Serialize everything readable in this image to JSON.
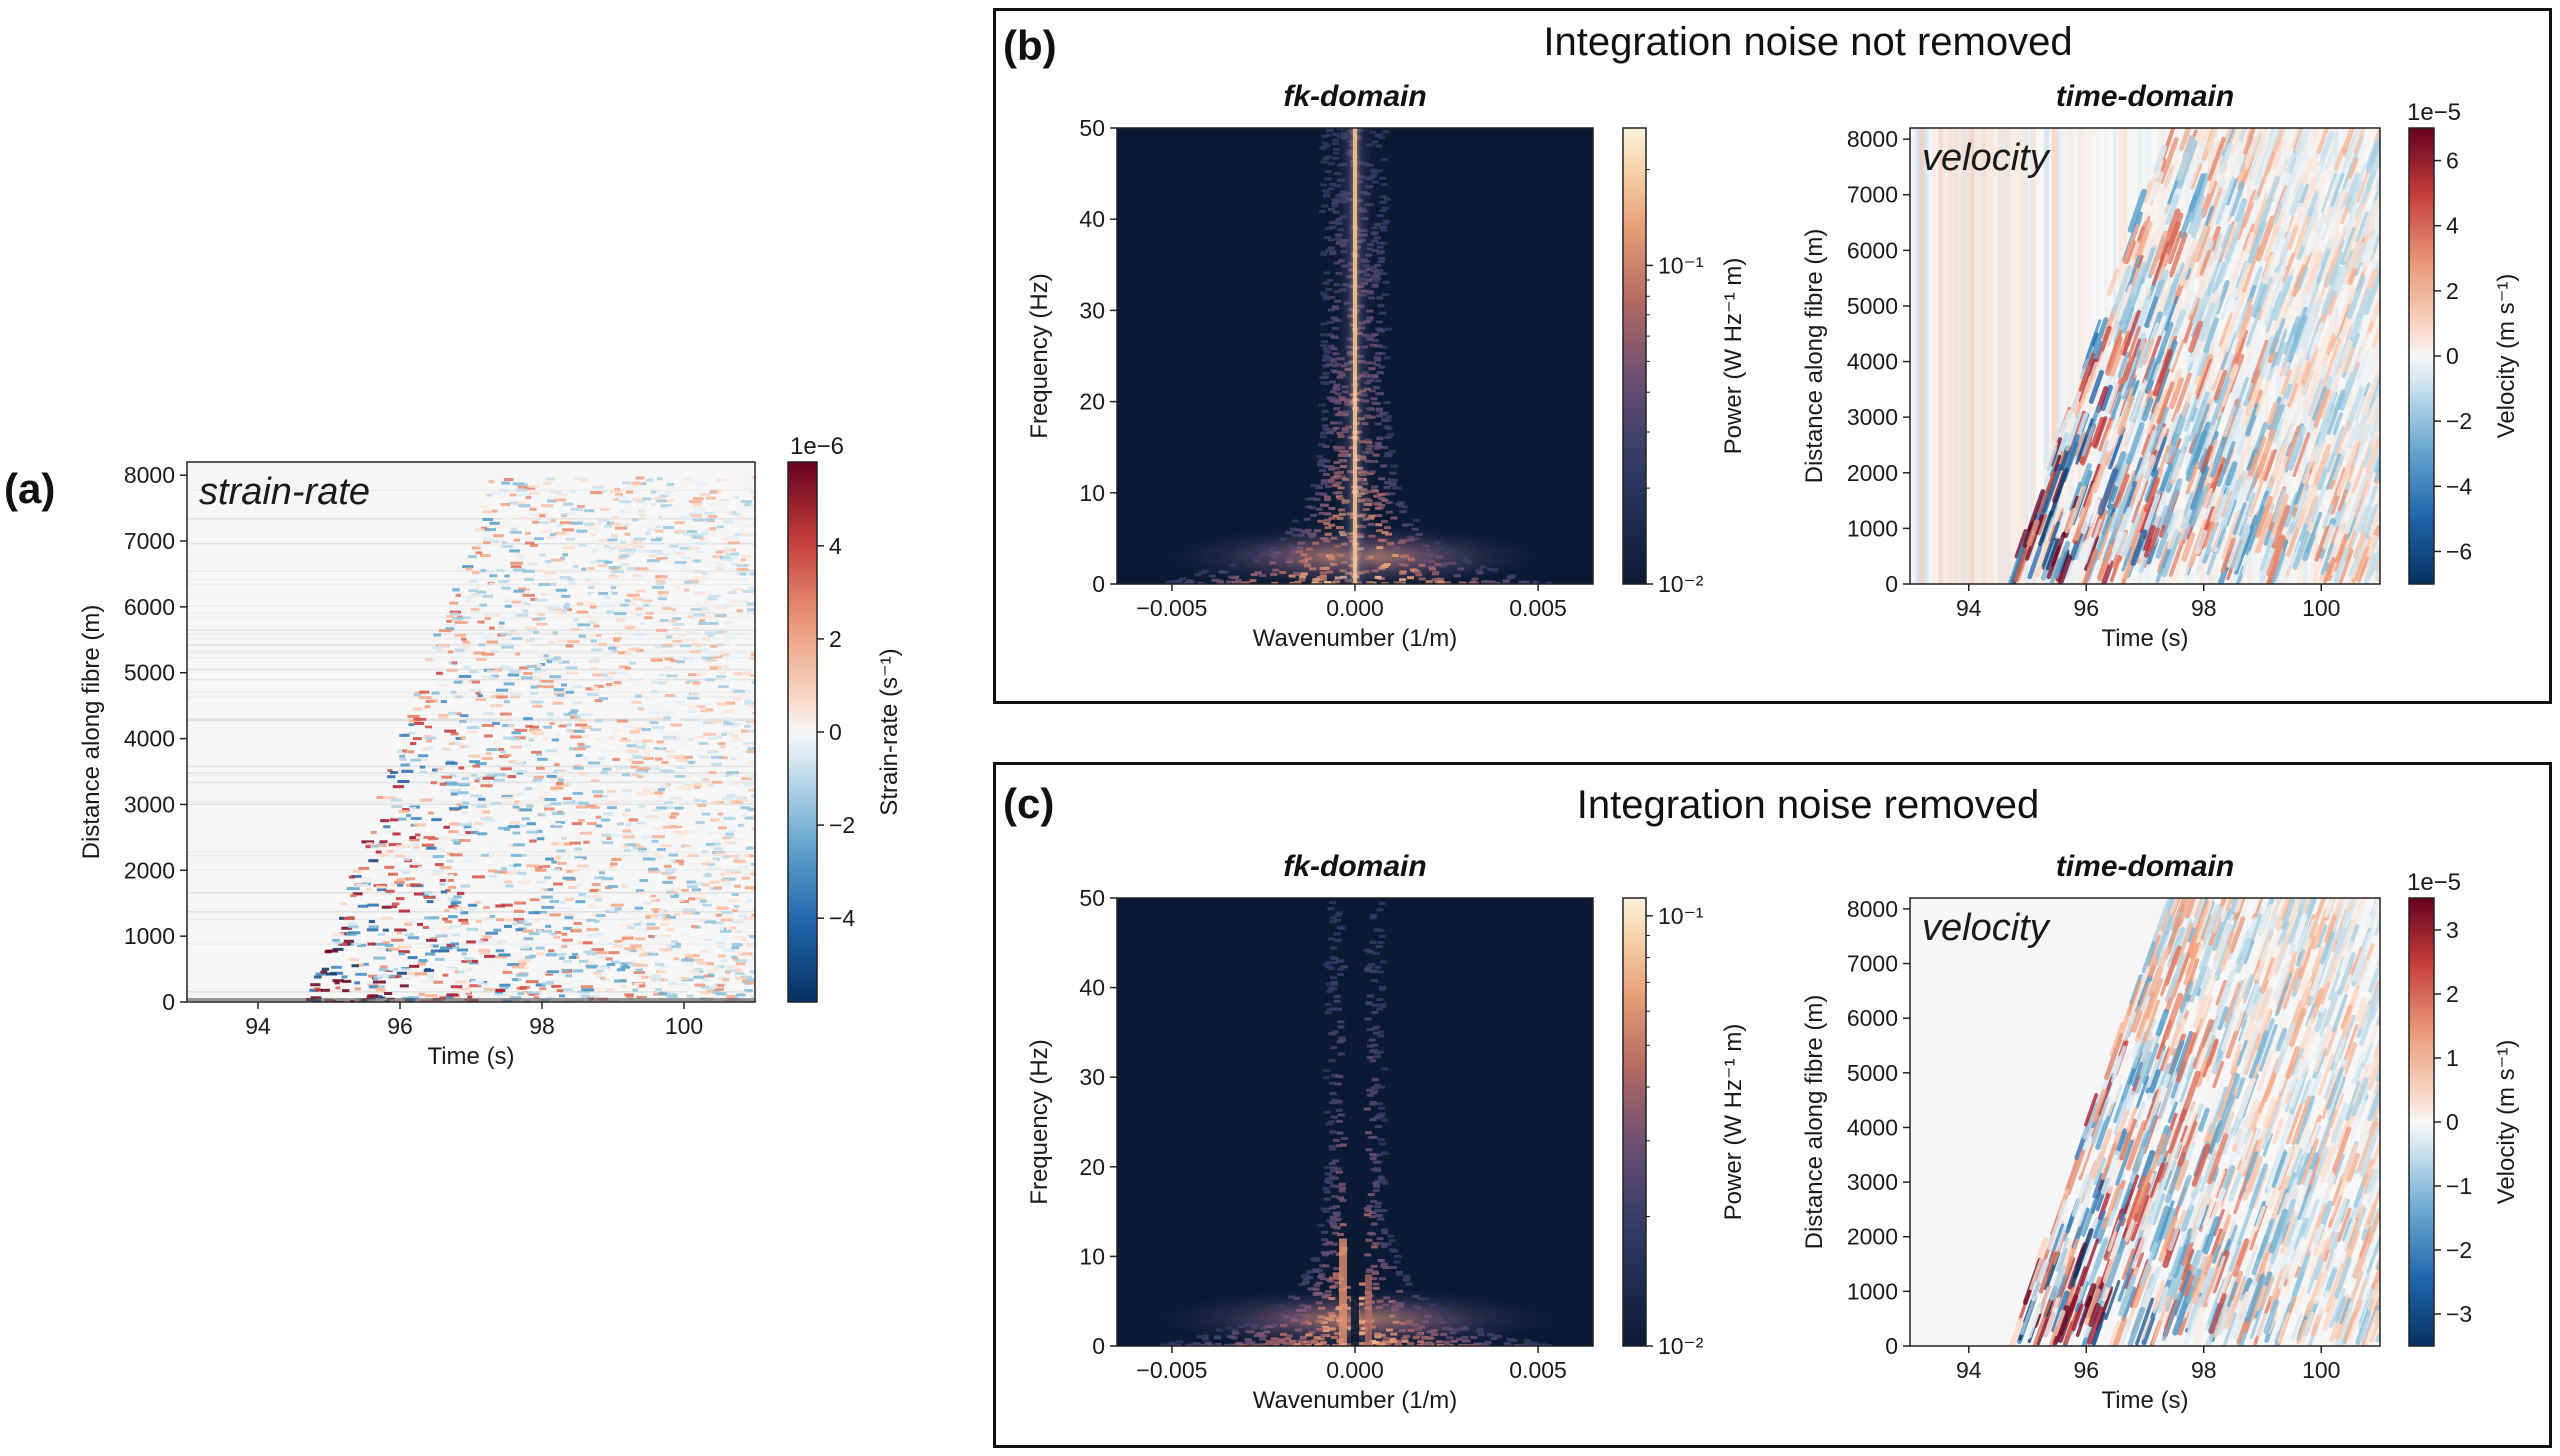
{
  "colors": {
    "background": "#ffffff",
    "fk_background": "#0b1a33",
    "rdbu_neg": "#2b5a9a",
    "rdbu_pos": "#b2182b"
  },
  "panels": {
    "a": {
      "letter": "(a)"
    },
    "b": {
      "letter": "(b)",
      "title": "Integration noise not removed"
    },
    "c": {
      "letter": "(c)",
      "title": "Integration noise removed"
    }
  },
  "chart_data": [
    {
      "id": "a-strain-rate",
      "type": "heatmap",
      "panel": "a",
      "inlay": "strain-rate",
      "xlabel": "Time (s)",
      "ylabel": "Distance along fibre (m)",
      "xlim": [
        93,
        101
      ],
      "ylim": [
        0,
        8200
      ],
      "xticks": [
        "94",
        "96",
        "98",
        "100"
      ],
      "yticks": [
        "0",
        "1000",
        "2000",
        "3000",
        "4000",
        "5000",
        "6000",
        "7000",
        "8000"
      ],
      "colorbar": {
        "label": "Strain-rate (s⁻¹)",
        "scale": "1e−6",
        "ticks": [
          "−4",
          "−2",
          "0",
          "2",
          "4"
        ],
        "range": [
          -5.8,
          5.8
        ],
        "cmap": "RdBu_r"
      }
    },
    {
      "id": "b-fk",
      "type": "heatmap",
      "panel": "b",
      "subtitle": "fk-domain",
      "xlabel": "Wavenumber (1/m)",
      "ylabel": "Frequency (Hz)",
      "xlim": [
        -0.0065,
        0.0065
      ],
      "ylim": [
        0,
        50
      ],
      "xticks": [
        "−0.005",
        "0.000",
        "0.005"
      ],
      "yticks": [
        "0",
        "10",
        "20",
        "30",
        "40",
        "50"
      ],
      "colorbar": {
        "label": "Power (W Hz⁻¹ m)",
        "scale": "",
        "ticks": [
          "10⁻²",
          "10⁻¹"
        ],
        "range": [
          0.01,
          0.27
        ],
        "cmap": "log"
      }
    },
    {
      "id": "b-time",
      "type": "heatmap",
      "panel": "b",
      "subtitle": "time-domain",
      "inlay": "velocity",
      "xlabel": "Time (s)",
      "ylabel": "Distance along fibre (m)",
      "xlim": [
        93,
        101
      ],
      "ylim": [
        0,
        8200
      ],
      "xticks": [
        "94",
        "96",
        "98",
        "100"
      ],
      "yticks": [
        "0",
        "1000",
        "2000",
        "3000",
        "4000",
        "5000",
        "6000",
        "7000",
        "8000"
      ],
      "colorbar": {
        "label": "Velocity (m s⁻¹)",
        "scale": "1e−5",
        "ticks": [
          "−6",
          "−4",
          "−2",
          "0",
          "2",
          "4",
          "6"
        ],
        "range": [
          -7,
          7
        ],
        "cmap": "RdBu_r"
      }
    },
    {
      "id": "c-fk",
      "type": "heatmap",
      "panel": "c",
      "subtitle": "fk-domain",
      "xlabel": "Wavenumber (1/m)",
      "ylabel": "Frequency (Hz)",
      "xlim": [
        -0.0065,
        0.0065
      ],
      "ylim": [
        0,
        50
      ],
      "xticks": [
        "−0.005",
        "0.000",
        "0.005"
      ],
      "yticks": [
        "0",
        "10",
        "20",
        "30",
        "40",
        "50"
      ],
      "colorbar": {
        "label": "Power (W Hz⁻¹ m)",
        "scale": "",
        "ticks": [
          "10⁻²",
          "10⁻¹"
        ],
        "range": [
          0.01,
          0.11
        ],
        "cmap": "log"
      }
    },
    {
      "id": "c-time",
      "type": "heatmap",
      "panel": "c",
      "subtitle": "time-domain",
      "inlay": "velocity",
      "xlabel": "Time (s)",
      "ylabel": "Distance along fibre (m)",
      "xlim": [
        93,
        101
      ],
      "ylim": [
        0,
        8200
      ],
      "xticks": [
        "94",
        "96",
        "98",
        "100"
      ],
      "yticks": [
        "0",
        "1000",
        "2000",
        "3000",
        "4000",
        "5000",
        "6000",
        "7000",
        "8000"
      ],
      "colorbar": {
        "label": "Velocity (m s⁻¹)",
        "scale": "1e−5",
        "ticks": [
          "−3",
          "−2",
          "−1",
          "0",
          "1",
          "2",
          "3"
        ],
        "range": [
          -3.5,
          3.5
        ],
        "cmap": "RdBu_r"
      }
    }
  ]
}
